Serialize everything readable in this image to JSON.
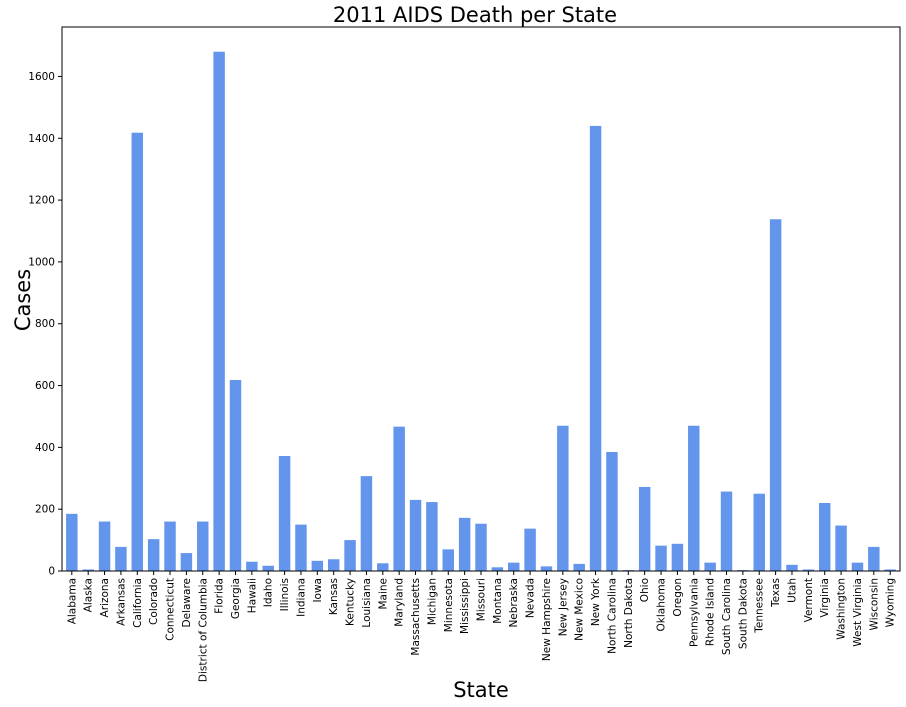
{
  "chart_data": {
    "type": "bar",
    "title": "2011 AIDS Death per State",
    "xlabel": "State",
    "ylabel": "Cases",
    "ylim": [
      0,
      1760
    ],
    "yticks": [
      0,
      200,
      400,
      600,
      800,
      1000,
      1200,
      1400,
      1600
    ],
    "grid": false,
    "bar_color": "#6495ed",
    "categories": [
      "Alabama",
      "Alaska",
      "Arizona",
      "Arkansas",
      "California",
      "Colorado",
      "Connecticut",
      "Delaware",
      "District of Columbia",
      "Florida",
      "Georgia",
      "Hawaii",
      "Idaho",
      "Illinois",
      "Indiana",
      "Iowa",
      "Kansas",
      "Kentucky",
      "Louisiana",
      "Maine",
      "Maryland",
      "Massachusetts",
      "Michigan",
      "Minnesota",
      "Mississippi",
      "Missouri",
      "Montana",
      "Nebraska",
      "Nevada",
      "New Hampshire",
      "New Jersey",
      "New Mexico",
      "New York",
      "North Carolina",
      "North Dakota",
      "Ohio",
      "Oklahoma",
      "Oregon",
      "Pennsylvania",
      "Rhode Island",
      "South Carolina",
      "South Dakota",
      "Tennessee",
      "Texas",
      "Utah",
      "Vermont",
      "Virginia",
      "Washington",
      "West Virginia",
      "Wisconsin",
      "Wyoming"
    ],
    "values": [
      185,
      5,
      160,
      78,
      1418,
      103,
      160,
      58,
      160,
      1680,
      618,
      30,
      17,
      372,
      150,
      33,
      38,
      100,
      307,
      25,
      467,
      230,
      223,
      70,
      172,
      153,
      12,
      27,
      137,
      15,
      470,
      23,
      1440,
      385,
      3,
      272,
      82,
      88,
      470,
      27,
      257,
      3,
      250,
      1138,
      20,
      5,
      220,
      147,
      27,
      78,
      5
    ]
  }
}
